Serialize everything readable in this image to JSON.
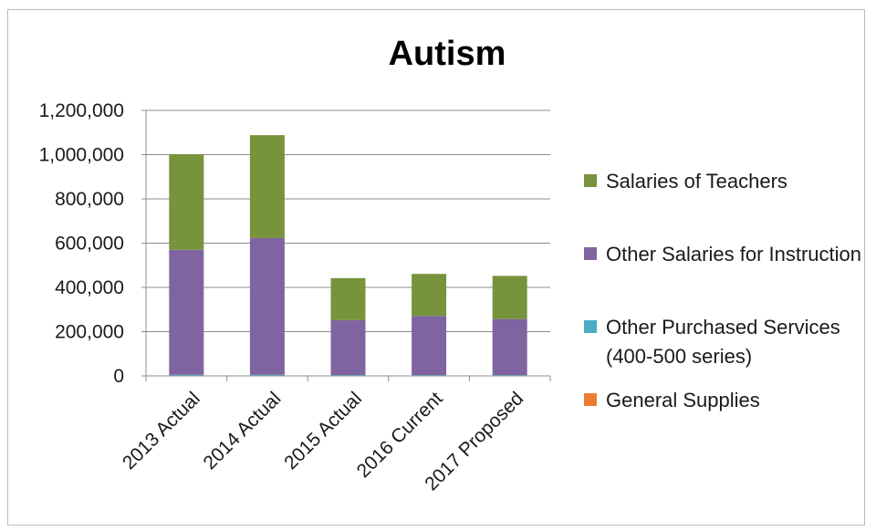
{
  "chart_data": {
    "type": "bar",
    "stacked": true,
    "title": "Autism",
    "categories": [
      "2013 Actual",
      "2014 Actual",
      "2015 Actual",
      "2016 Current",
      "2017 Proposed"
    ],
    "series": [
      {
        "name": "General Supplies",
        "color": "#ed7d31",
        "values": [
          1000,
          1000,
          1000,
          1000,
          1000
        ]
      },
      {
        "name": "Other Purchased Services (400-500 series)",
        "color": "#4bacc6",
        "values": [
          4000,
          4000,
          3000,
          3000,
          3000
        ]
      },
      {
        "name": "Other Salaries for Instruction",
        "color": "#8064a2",
        "values": [
          565000,
          618000,
          248000,
          267000,
          253000
        ]
      },
      {
        "name": "Salaries of Teachers",
        "color": "#77933c",
        "values": [
          432000,
          465000,
          190000,
          190000,
          195000
        ]
      }
    ],
    "legend_order": [
      "Salaries of Teachers",
      "Other Salaries for Instruction",
      "Other Purchased Services (400-500 series)",
      "General Supplies"
    ],
    "yticks": [
      "0",
      "200,000",
      "400,000",
      "600,000",
      "800,000",
      "1,000,000",
      "1,200,000"
    ],
    "ylim": [
      0,
      1200000
    ],
    "grid": true,
    "legend_position": "right"
  }
}
